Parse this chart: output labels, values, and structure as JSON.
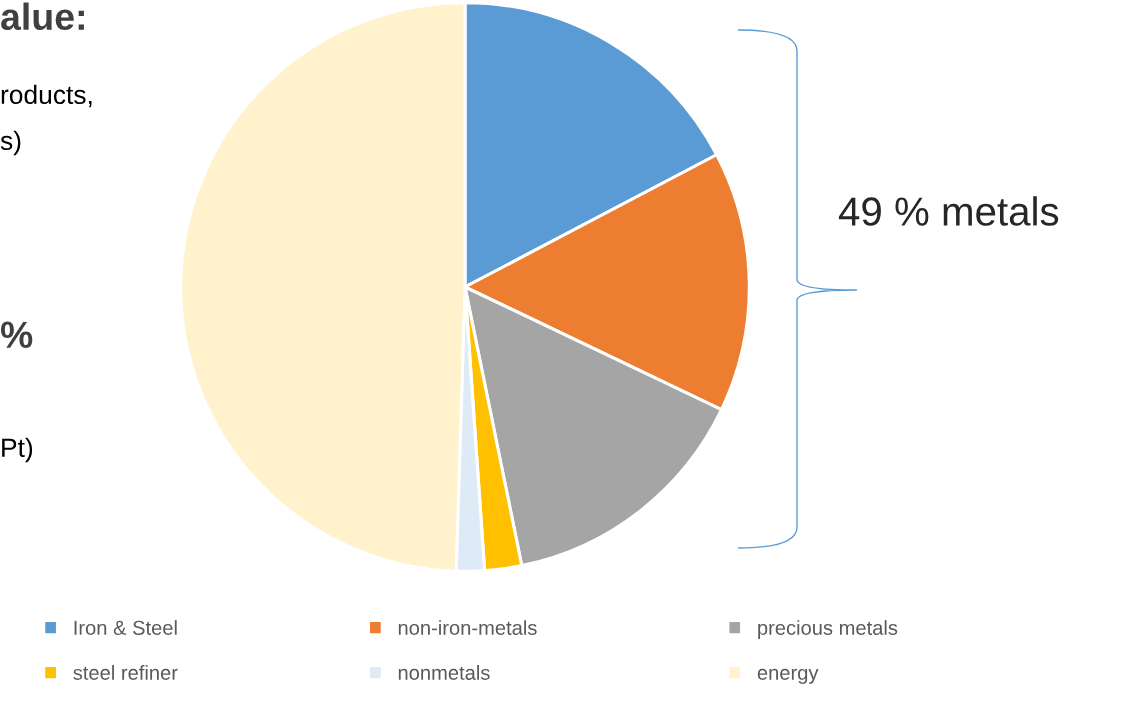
{
  "chart_data": {
    "type": "pie",
    "categories": [
      "Iron & Steel",
      "non-iron-metals",
      "precious metals",
      "steel refiner",
      "nonmetals",
      "energy"
    ],
    "values": [
      17.3,
      14.8,
      14.7,
      2.1,
      1.6,
      49.5
    ],
    "colors": [
      "#5b9bd5",
      "#ed7d31",
      "#a5a5a5",
      "#ffc000",
      "#deebf7",
      "#fff2cc"
    ],
    "legend": "bottom",
    "annotations": [
      "alue:",
      "roducts,",
      "s)",
      "%",
      "Pt)",
      "49 % metals"
    ]
  }
}
